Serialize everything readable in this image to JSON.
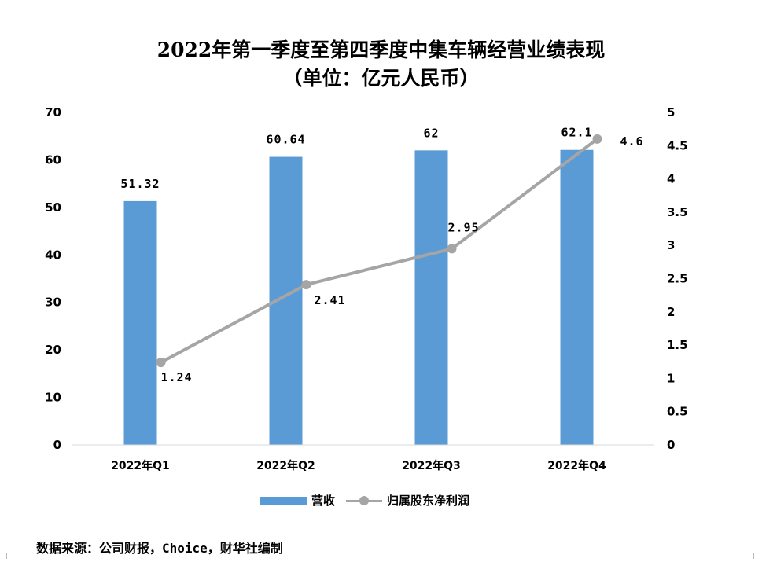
{
  "chart_data": {
    "type": "bar",
    "title": "2022年第一季度至第四季度中集车辆经营业绩表现",
    "subtitle": "（单位：亿元人民币）",
    "categories": [
      "2022年Q1",
      "2022年Q2",
      "2022年Q3",
      "2022年Q4"
    ],
    "series": [
      {
        "name": "营收",
        "type": "bar",
        "axis": "left",
        "values": [
          51.32,
          60.64,
          62,
          62.1
        ],
        "color": "#5b9bd5"
      },
      {
        "name": "归属股东净利润",
        "type": "line",
        "axis": "right",
        "values": [
          1.24,
          2.41,
          2.95,
          4.6
        ],
        "color": "#a5a5a5"
      }
    ],
    "y_left": {
      "min": 0,
      "max": 70,
      "step": 10,
      "ticks": [
        "0",
        "10",
        "20",
        "30",
        "40",
        "50",
        "60",
        "70"
      ]
    },
    "y_right": {
      "min": 0,
      "max": 5,
      "step": 0.5,
      "ticks": [
        "0",
        "0.5",
        "1",
        "1.5",
        "2",
        "2.5",
        "3",
        "3.5",
        "4",
        "4.5",
        "5"
      ]
    },
    "data_labels": {
      "bar": [
        "51.32",
        "60.64",
        "62",
        "62.1"
      ],
      "line": [
        "1.24",
        "2.41",
        "2.95",
        "4.6"
      ]
    },
    "grid": false,
    "legend": "bottom"
  },
  "source": "数据来源：公司财报，Choice，财华社编制"
}
